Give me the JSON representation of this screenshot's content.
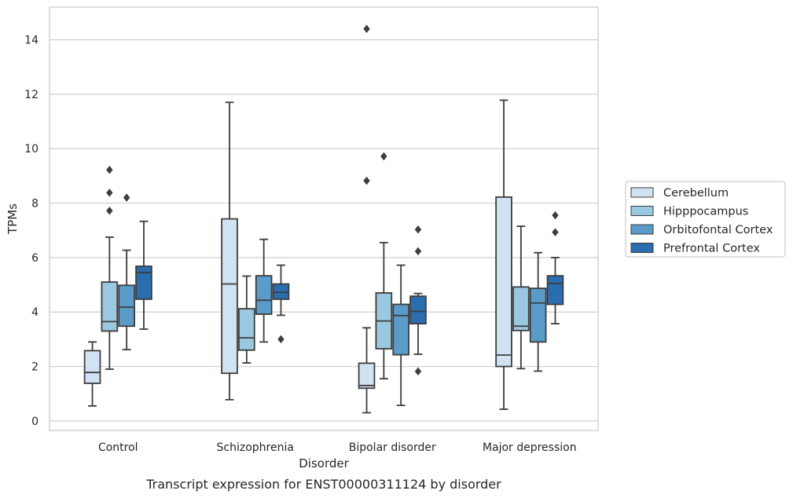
{
  "chart_data": {
    "type": "box",
    "title": "",
    "caption": "Transcript expression for ENST00000311124 by disorder",
    "xlabel": "Disorder",
    "ylabel": "TPMs",
    "ylim": [
      -0.35,
      15.2
    ],
    "yticks": [
      0,
      2,
      4,
      6,
      8,
      10,
      12,
      14
    ],
    "grid": "horizontal",
    "legend_position": "right",
    "categories": [
      "Control",
      "Schizophrenia",
      "Bipolar disorder",
      "Major depression"
    ],
    "series": [
      {
        "name": "Cerebellum",
        "color": "#d1e2f2",
        "boxes": [
          {
            "whislo": 0.55,
            "q1": 1.38,
            "med": 1.78,
            "q3": 2.58,
            "whishi": 2.9,
            "fliers": []
          },
          {
            "whislo": 0.78,
            "q1": 1.75,
            "med": 5.03,
            "q3": 7.42,
            "whishi": 11.7,
            "fliers": []
          },
          {
            "whislo": 0.3,
            "q1": 1.2,
            "med": 1.3,
            "q3": 2.12,
            "whishi": 3.42,
            "fliers": [
              14.4,
              8.82
            ]
          },
          {
            "whislo": 0.43,
            "q1": 2.0,
            "med": 2.42,
            "q3": 8.22,
            "whishi": 11.78,
            "fliers": []
          }
        ]
      },
      {
        "name": "Hipppocampus",
        "color": "#9ac8e0",
        "boxes": [
          {
            "whislo": 1.9,
            "q1": 3.3,
            "med": 3.65,
            "q3": 5.1,
            "whishi": 6.75,
            "fliers": [
              9.22,
              8.38,
              7.72
            ]
          },
          {
            "whislo": 2.13,
            "q1": 2.6,
            "med": 3.05,
            "q3": 4.12,
            "whishi": 5.32,
            "fliers": []
          },
          {
            "whislo": 1.55,
            "q1": 2.65,
            "med": 3.67,
            "q3": 4.7,
            "whishi": 6.55,
            "fliers": [
              9.72
            ]
          },
          {
            "whislo": 1.92,
            "q1": 3.32,
            "med": 3.48,
            "q3": 4.92,
            "whishi": 7.15,
            "fliers": []
          }
        ]
      },
      {
        "name": "Orbitofontal Cortex",
        "color": "#5a9bc9",
        "boxes": [
          {
            "whislo": 2.62,
            "q1": 3.48,
            "med": 4.18,
            "q3": 4.98,
            "whishi": 6.27,
            "fliers": [
              8.2
            ]
          },
          {
            "whislo": 2.9,
            "q1": 3.92,
            "med": 4.43,
            "q3": 5.33,
            "whishi": 6.67,
            "fliers": []
          },
          {
            "whislo": 0.57,
            "q1": 2.43,
            "med": 3.87,
            "q3": 4.28,
            "whishi": 5.72,
            "fliers": []
          },
          {
            "whislo": 1.83,
            "q1": 2.9,
            "med": 4.33,
            "q3": 4.87,
            "whishi": 6.18,
            "fliers": []
          }
        ]
      },
      {
        "name": "Prefrontal Cortex",
        "color": "#2a6eb0",
        "boxes": [
          {
            "whislo": 3.37,
            "q1": 4.47,
            "med": 5.45,
            "q3": 5.68,
            "whishi": 7.33,
            "fliers": []
          },
          {
            "whislo": 3.88,
            "q1": 4.47,
            "med": 4.72,
            "q3": 5.03,
            "whishi": 5.72,
            "fliers": [
              3.0
            ]
          },
          {
            "whislo": 2.45,
            "q1": 3.57,
            "med": 4.02,
            "q3": 4.58,
            "whishi": 4.68,
            "fliers": [
              7.03,
              6.23,
              1.82
            ]
          },
          {
            "whislo": 3.57,
            "q1": 4.28,
            "med": 5.05,
            "q3": 5.33,
            "whishi": 6.0,
            "fliers": [
              7.55,
              6.93
            ]
          }
        ]
      }
    ]
  }
}
